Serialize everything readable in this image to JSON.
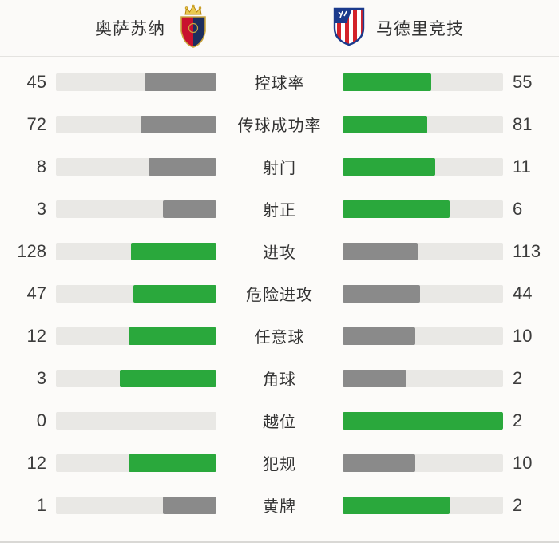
{
  "header": {
    "home_team": {
      "name": "奥萨苏纳",
      "badge": "osasuna-crest"
    },
    "away_team": {
      "name": "马德里竞技",
      "badge": "atletico-madrid-crest"
    }
  },
  "colors": {
    "win_fill": "#2aa83c",
    "lose_fill": "#8a8a8a",
    "track": "#e9e8e5",
    "text": "#333333"
  },
  "stats": [
    {
      "label": "控球率",
      "home": 45,
      "away": 55
    },
    {
      "label": "传球成功率",
      "home": 72,
      "away": 81
    },
    {
      "label": "射门",
      "home": 8,
      "away": 11
    },
    {
      "label": "射正",
      "home": 3,
      "away": 6
    },
    {
      "label": "进攻",
      "home": 128,
      "away": 113
    },
    {
      "label": "危险进攻",
      "home": 47,
      "away": 44
    },
    {
      "label": "任意球",
      "home": 12,
      "away": 10
    },
    {
      "label": "角球",
      "home": 3,
      "away": 2
    },
    {
      "label": "越位",
      "home": 0,
      "away": 2
    },
    {
      "label": "犯规",
      "home": 12,
      "away": 10
    },
    {
      "label": "黄牌",
      "home": 1,
      "away": 2
    }
  ],
  "chart_data": {
    "type": "bar",
    "title": "奥萨苏纳 vs 马德里竞技",
    "categories": [
      "控球率",
      "传球成功率",
      "射门",
      "射正",
      "进攻",
      "危险进攻",
      "任意球",
      "角球",
      "越位",
      "犯规",
      "黄牌"
    ],
    "series": [
      {
        "name": "奥萨苏纳",
        "values": [
          45,
          72,
          8,
          3,
          128,
          47,
          12,
          3,
          0,
          12,
          1
        ]
      },
      {
        "name": "马德里竞技",
        "values": [
          55,
          81,
          11,
          6,
          113,
          44,
          10,
          2,
          2,
          10,
          2
        ]
      }
    ],
    "layout": "horizontal paired bars diverging from center labels; left bars right-anchored, right bars left-anchored",
    "bar_scale": "fill width = value / (home + away) of that row",
    "highlight_rule": "higher value rendered green #2aa83c, lower value gray #8a8a8a, empty track #e9e8e5",
    "legend_position": "team names with crests in top header"
  }
}
